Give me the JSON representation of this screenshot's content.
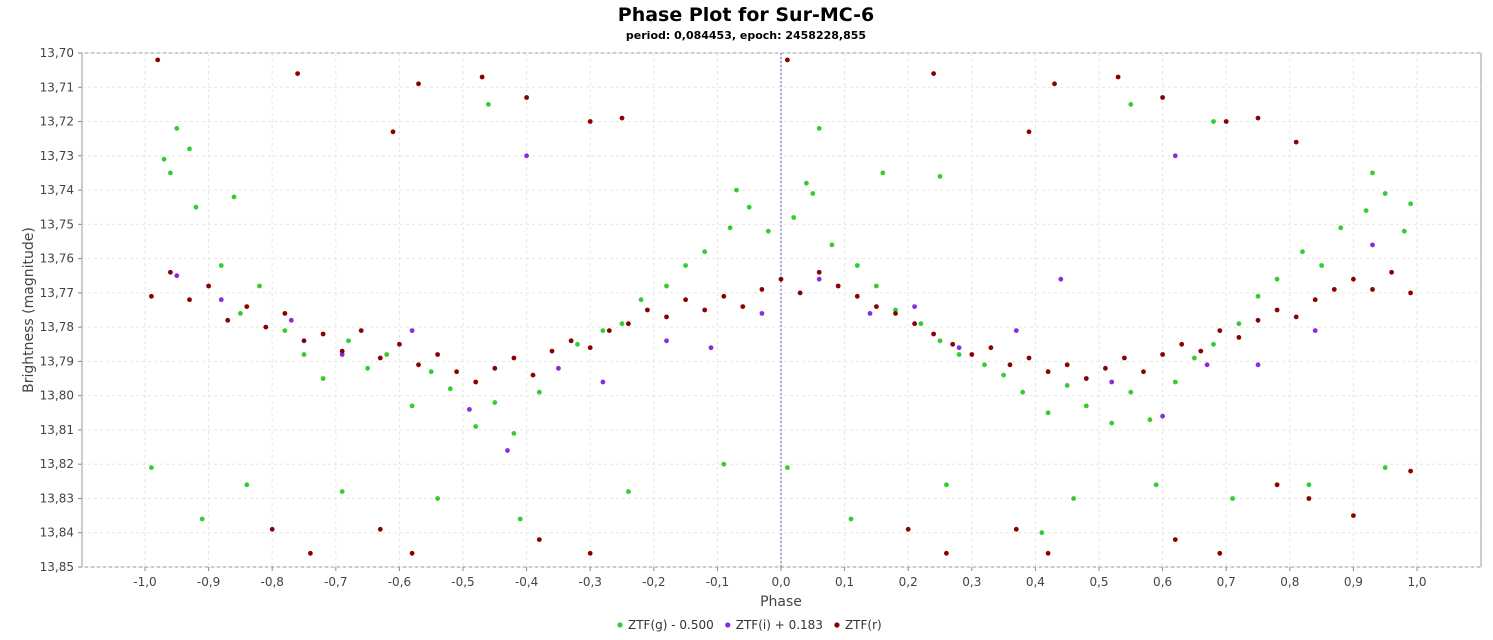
{
  "chart_data": {
    "type": "scatter",
    "title": "Phase Plot for Sur-MC-6",
    "subtitle": "period: 0,084453, epoch: 2458228,855",
    "xlabel": "Phase",
    "ylabel": "Brightness (magnitude)",
    "xlim": [
      -1.1,
      1.1
    ],
    "ylim": [
      13.7,
      13.85
    ],
    "y_inverted": true,
    "x_ticks": [
      "-1,0",
      "-0,9",
      "-0,8",
      "-0,7",
      "-0,6",
      "-0,5",
      "-0,4",
      "-0,3",
      "-0,2",
      "-0,1",
      "0,0",
      "0,1",
      "0,2",
      "0,3",
      "0,4",
      "0,5",
      "0,6",
      "0,7",
      "0,8",
      "0,9",
      "1,0"
    ],
    "y_ticks": [
      "13,70",
      "13,71",
      "13,72",
      "13,73",
      "13,74",
      "13,75",
      "13,76",
      "13,77",
      "13,78",
      "13,79",
      "13,80",
      "13,81",
      "13,82",
      "13,83",
      "13,84",
      "13,85"
    ],
    "grid": true,
    "legend_position": "bottom",
    "series": [
      {
        "name": "ZTF(g) - 0.500",
        "color": "#33cc33",
        "points": [
          [
            -0.97,
            13.731
          ],
          [
            -0.95,
            13.722
          ],
          [
            -0.92,
            13.745
          ],
          [
            -0.88,
            13.762
          ],
          [
            -0.85,
            13.776
          ],
          [
            -0.82,
            13.768
          ],
          [
            -0.78,
            13.781
          ],
          [
            -0.75,
            13.788
          ],
          [
            -0.72,
            13.795
          ],
          [
            -0.68,
            13.784
          ],
          [
            -0.65,
            13.792
          ],
          [
            -0.62,
            13.788
          ],
          [
            -0.58,
            13.803
          ],
          [
            -0.55,
            13.793
          ],
          [
            -0.52,
            13.798
          ],
          [
            -0.48,
            13.809
          ],
          [
            -0.45,
            13.802
          ],
          [
            -0.42,
            13.811
          ],
          [
            -0.38,
            13.799
          ],
          [
            -0.35,
            13.792
          ],
          [
            -0.32,
            13.785
          ],
          [
            -0.28,
            13.781
          ],
          [
            -0.25,
            13.779
          ],
          [
            -0.22,
            13.772
          ],
          [
            -0.18,
            13.768
          ],
          [
            -0.15,
            13.762
          ],
          [
            -0.12,
            13.758
          ],
          [
            -0.08,
            13.751
          ],
          [
            -0.05,
            13.745
          ],
          [
            -0.02,
            13.752
          ],
          [
            0.02,
            13.748
          ],
          [
            0.05,
            13.741
          ],
          [
            0.08,
            13.756
          ],
          [
            0.12,
            13.762
          ],
          [
            0.15,
            13.768
          ],
          [
            0.18,
            13.775
          ],
          [
            0.22,
            13.779
          ],
          [
            0.25,
            13.784
          ],
          [
            0.28,
            13.788
          ],
          [
            0.32,
            13.791
          ],
          [
            0.35,
            13.794
          ],
          [
            0.38,
            13.799
          ],
          [
            0.42,
            13.805
          ],
          [
            0.45,
            13.797
          ],
          [
            0.48,
            13.803
          ],
          [
            0.52,
            13.808
          ],
          [
            0.55,
            13.799
          ],
          [
            0.58,
            13.807
          ],
          [
            0.62,
            13.796
          ],
          [
            0.65,
            13.789
          ],
          [
            0.68,
            13.785
          ],
          [
            0.72,
            13.779
          ],
          [
            0.75,
            13.771
          ],
          [
            0.78,
            13.766
          ],
          [
            0.82,
            13.758
          ],
          [
            0.85,
            13.762
          ],
          [
            0.88,
            13.751
          ],
          [
            0.92,
            13.746
          ],
          [
            0.95,
            13.741
          ],
          [
            0.98,
            13.752
          ],
          [
            -0.99,
            13.821
          ],
          [
            -0.91,
            13.836
          ],
          [
            -0.84,
            13.826
          ],
          [
            -0.69,
            13.828
          ],
          [
            -0.54,
            13.83
          ],
          [
            -0.41,
            13.836
          ],
          [
            -0.24,
            13.828
          ],
          [
            -0.09,
            13.82
          ],
          [
            0.01,
            13.821
          ],
          [
            0.11,
            13.836
          ],
          [
            0.26,
            13.826
          ],
          [
            0.41,
            13.84
          ],
          [
            0.46,
            13.83
          ],
          [
            0.59,
            13.826
          ],
          [
            0.71,
            13.83
          ],
          [
            0.83,
            13.826
          ],
          [
            0.95,
            13.821
          ],
          [
            -0.96,
            13.735
          ],
          [
            -0.93,
            13.728
          ],
          [
            -0.86,
            13.742
          ],
          [
            -0.46,
            13.715
          ],
          [
            -0.07,
            13.74
          ],
          [
            0.04,
            13.738
          ],
          [
            0.06,
            13.722
          ],
          [
            0.16,
            13.735
          ],
          [
            0.25,
            13.736
          ],
          [
            0.55,
            13.715
          ],
          [
            0.68,
            13.72
          ],
          [
            0.93,
            13.735
          ],
          [
            0.99,
            13.744
          ]
        ]
      },
      {
        "name": "ZTF(i) + 0.183",
        "color": "#8a2be2",
        "points": [
          [
            -0.95,
            13.765
          ],
          [
            -0.88,
            13.772
          ],
          [
            -0.77,
            13.778
          ],
          [
            -0.69,
            13.788
          ],
          [
            -0.58,
            13.781
          ],
          [
            -0.49,
            13.804
          ],
          [
            -0.43,
            13.816
          ],
          [
            -0.35,
            13.792
          ],
          [
            -0.28,
            13.796
          ],
          [
            -0.18,
            13.784
          ],
          [
            -0.11,
            13.786
          ],
          [
            -0.03,
            13.776
          ],
          [
            0.06,
            13.766
          ],
          [
            0.14,
            13.776
          ],
          [
            0.21,
            13.774
          ],
          [
            0.28,
            13.786
          ],
          [
            0.37,
            13.781
          ],
          [
            0.44,
            13.766
          ],
          [
            0.52,
            13.796
          ],
          [
            0.6,
            13.806
          ],
          [
            0.67,
            13.791
          ],
          [
            0.75,
            13.791
          ],
          [
            0.84,
            13.781
          ],
          [
            0.93,
            13.756
          ],
          [
            0.62,
            13.73
          ],
          [
            -0.4,
            13.73
          ]
        ]
      },
      {
        "name": "ZTF(r)",
        "color": "#8b0000",
        "points": [
          [
            -0.99,
            13.771
          ],
          [
            -0.96,
            13.764
          ],
          [
            -0.93,
            13.772
          ],
          [
            -0.9,
            13.768
          ],
          [
            -0.87,
            13.778
          ],
          [
            -0.84,
            13.774
          ],
          [
            -0.81,
            13.78
          ],
          [
            -0.78,
            13.776
          ],
          [
            -0.75,
            13.784
          ],
          [
            -0.72,
            13.782
          ],
          [
            -0.69,
            13.787
          ],
          [
            -0.66,
            13.781
          ],
          [
            -0.63,
            13.789
          ],
          [
            -0.6,
            13.785
          ],
          [
            -0.57,
            13.791
          ],
          [
            -0.54,
            13.788
          ],
          [
            -0.51,
            13.793
          ],
          [
            -0.48,
            13.796
          ],
          [
            -0.45,
            13.792
          ],
          [
            -0.42,
            13.789
          ],
          [
            -0.39,
            13.794
          ],
          [
            -0.36,
            13.787
          ],
          [
            -0.33,
            13.784
          ],
          [
            -0.3,
            13.786
          ],
          [
            -0.27,
            13.781
          ],
          [
            -0.24,
            13.779
          ],
          [
            -0.21,
            13.775
          ],
          [
            -0.18,
            13.777
          ],
          [
            -0.15,
            13.772
          ],
          [
            -0.12,
            13.775
          ],
          [
            -0.09,
            13.771
          ],
          [
            -0.06,
            13.774
          ],
          [
            -0.03,
            13.769
          ],
          [
            0.0,
            13.766
          ],
          [
            0.03,
            13.77
          ],
          [
            0.06,
            13.764
          ],
          [
            0.09,
            13.768
          ],
          [
            0.12,
            13.771
          ],
          [
            0.15,
            13.774
          ],
          [
            0.18,
            13.776
          ],
          [
            0.21,
            13.779
          ],
          [
            0.24,
            13.782
          ],
          [
            0.27,
            13.785
          ],
          [
            0.3,
            13.788
          ],
          [
            0.33,
            13.786
          ],
          [
            0.36,
            13.791
          ],
          [
            0.39,
            13.789
          ],
          [
            0.42,
            13.793
          ],
          [
            0.45,
            13.791
          ],
          [
            0.48,
            13.795
          ],
          [
            0.51,
            13.792
          ],
          [
            0.54,
            13.789
          ],
          [
            0.57,
            13.793
          ],
          [
            0.6,
            13.788
          ],
          [
            0.63,
            13.785
          ],
          [
            0.66,
            13.787
          ],
          [
            0.69,
            13.781
          ],
          [
            0.72,
            13.783
          ],
          [
            0.75,
            13.778
          ],
          [
            0.78,
            13.775
          ],
          [
            0.81,
            13.777
          ],
          [
            0.84,
            13.772
          ],
          [
            0.87,
            13.769
          ],
          [
            0.9,
            13.766
          ],
          [
            0.93,
            13.769
          ],
          [
            0.96,
            13.764
          ],
          [
            0.99,
            13.77
          ],
          [
            -0.98,
            13.702
          ],
          [
            -0.76,
            13.706
          ],
          [
            -0.57,
            13.709
          ],
          [
            -0.47,
            13.707
          ],
          [
            -0.4,
            13.713
          ],
          [
            -0.61,
            13.723
          ],
          [
            -0.3,
            13.72
          ],
          [
            -0.25,
            13.719
          ],
          [
            0.01,
            13.702
          ],
          [
            0.24,
            13.706
          ],
          [
            0.43,
            13.709
          ],
          [
            0.53,
            13.707
          ],
          [
            0.6,
            13.713
          ],
          [
            0.39,
            13.723
          ],
          [
            0.7,
            13.72
          ],
          [
            0.75,
            13.719
          ],
          [
            0.81,
            13.726
          ],
          [
            -0.74,
            13.846
          ],
          [
            -0.58,
            13.846
          ],
          [
            -0.3,
            13.846
          ],
          [
            -0.38,
            13.842
          ],
          [
            -0.63,
            13.839
          ],
          [
            -0.8,
            13.839
          ],
          [
            0.26,
            13.846
          ],
          [
            0.42,
            13.846
          ],
          [
            0.69,
            13.846
          ],
          [
            0.62,
            13.842
          ],
          [
            0.37,
            13.839
          ],
          [
            0.2,
            13.839
          ],
          [
            0.9,
            13.835
          ],
          [
            0.99,
            13.822
          ],
          [
            0.78,
            13.826
          ],
          [
            0.83,
            13.83
          ]
        ]
      }
    ]
  }
}
